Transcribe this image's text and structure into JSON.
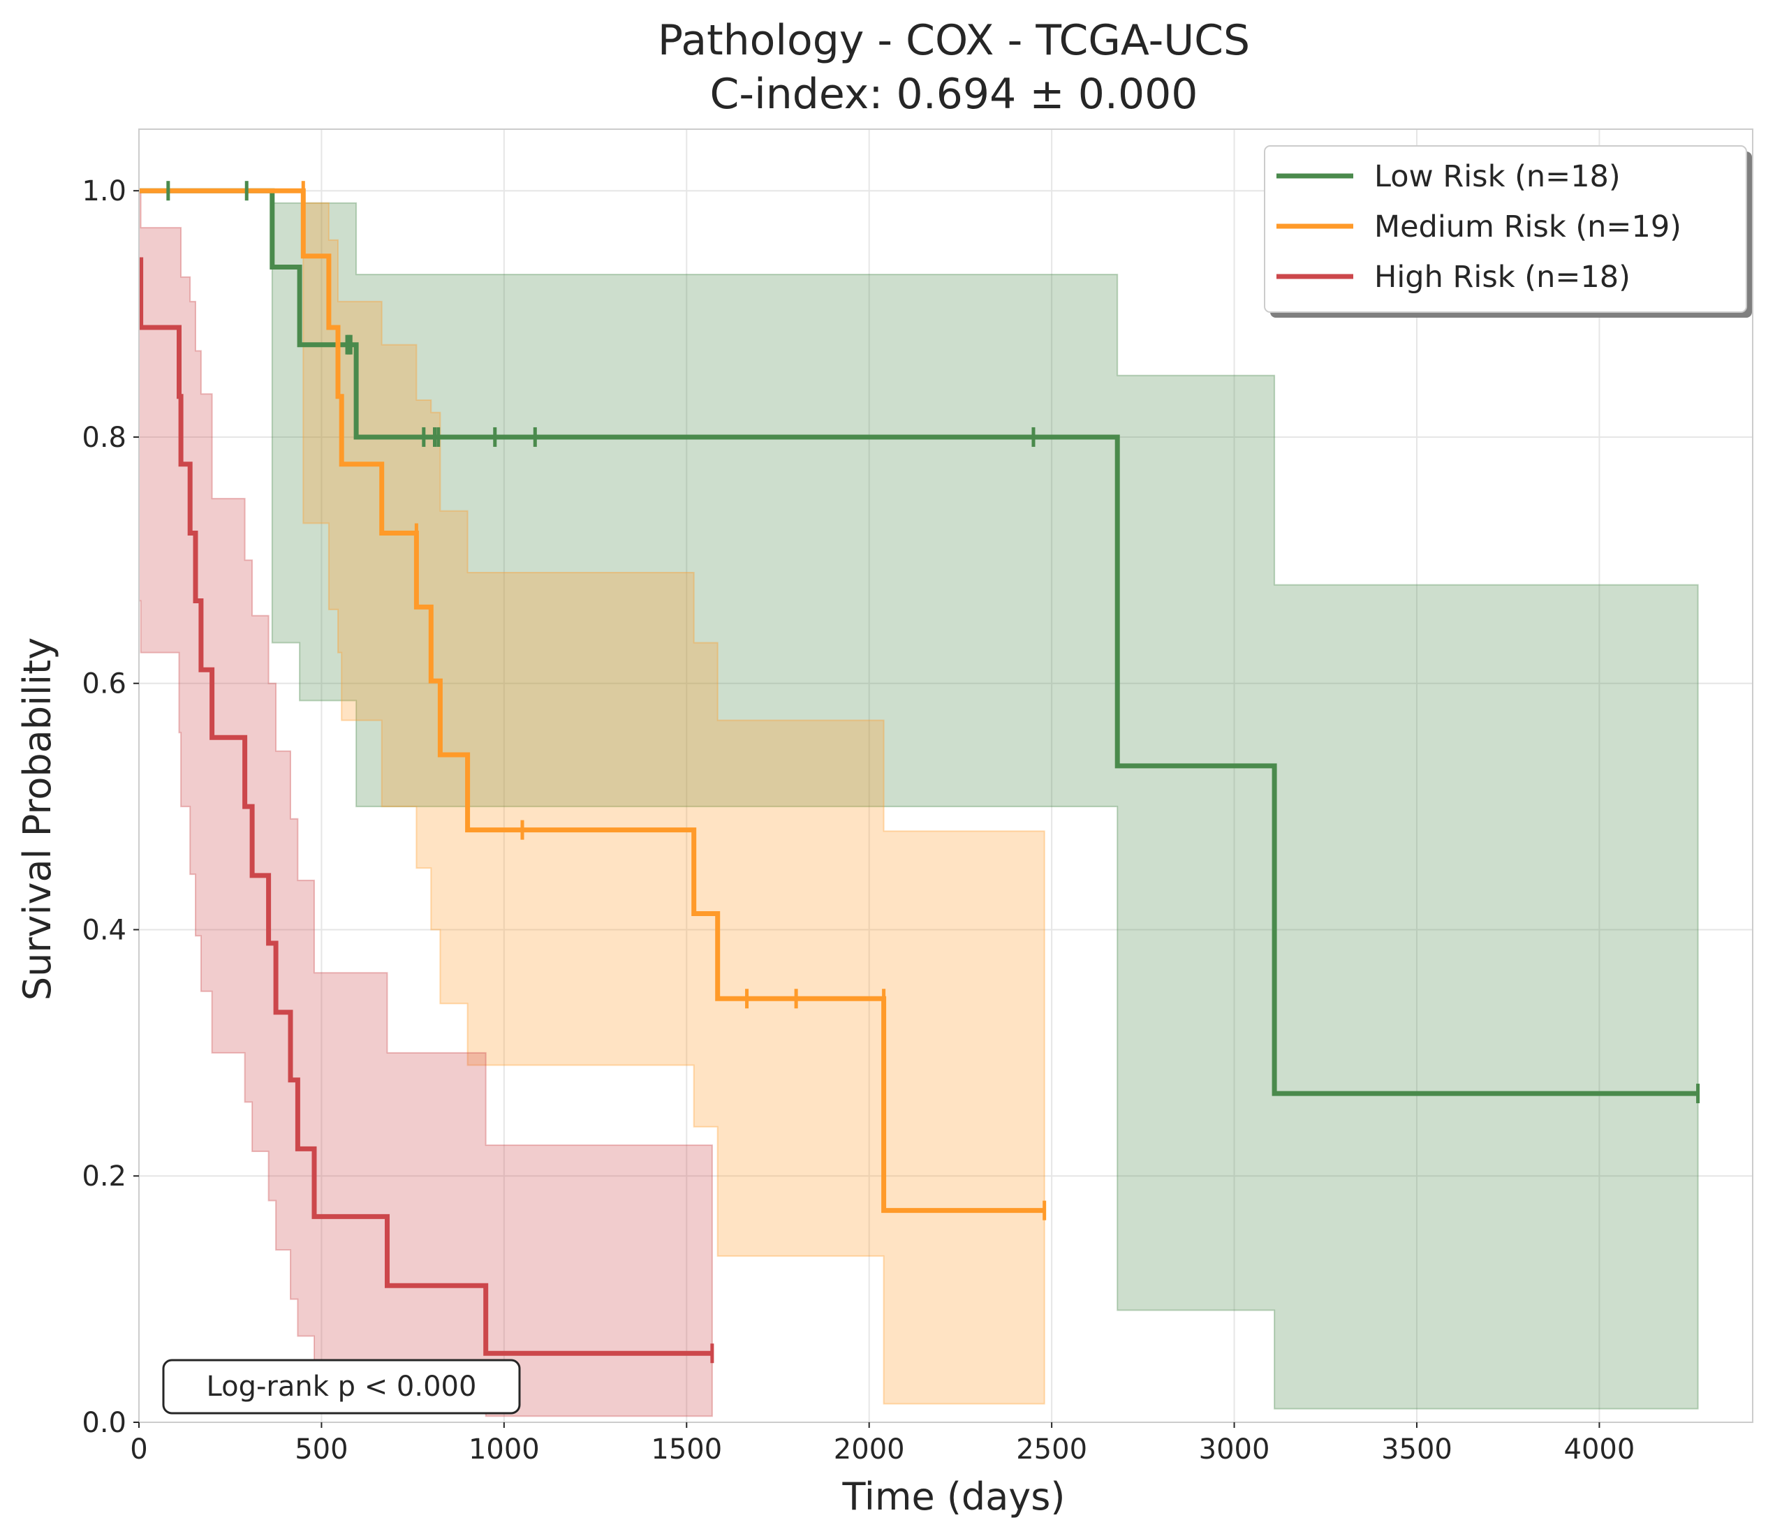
{
  "chart_data": {
    "type": "line",
    "subtype": "kaplan-meier",
    "title": "Pathology - COX - TCGA-UCS",
    "subtitle": "C-index: 0.694 ± 0.000",
    "xlabel": "Time (days)",
    "ylabel": "Survival Probability",
    "xlim": [
      0,
      4420
    ],
    "ylim": [
      0,
      1.05
    ],
    "xticks": [
      0,
      500,
      1000,
      1500,
      2000,
      2500,
      3000,
      3500,
      4000
    ],
    "yticks": [
      0.0,
      0.2,
      0.4,
      0.6,
      0.8,
      1.0
    ],
    "xtick_labels": [
      "0",
      "500",
      "1000",
      "1500",
      "2000",
      "2500",
      "3000",
      "3500",
      "4000"
    ],
    "ytick_labels": [
      "0.0",
      "0.2",
      "0.4",
      "0.6",
      "0.8",
      "1.0"
    ],
    "grid": true,
    "legend_position": "top-right",
    "annotation": "Log-rank p < 0.000",
    "series": [
      {
        "name": "Low Risk (n=18)",
        "color": "#4a8a4c",
        "steps": [
          [
            0,
            1.0
          ],
          [
            365,
            0.938
          ],
          [
            440,
            0.875
          ],
          [
            595,
            0.8
          ],
          [
            2680,
            0.533
          ],
          [
            3110,
            0.267
          ],
          [
            4270,
            0.267
          ]
        ],
        "ci": [
          [
            0,
            1.0,
            1.0
          ],
          [
            365,
            0.99,
            0.633
          ],
          [
            440,
            0.99,
            0.586
          ],
          [
            595,
            0.967,
            0.5
          ],
          [
            595,
            0.932,
            0.5
          ],
          [
            2680,
            0.85,
            0.091
          ],
          [
            3110,
            0.68,
            0.011
          ],
          [
            4270,
            0.68,
            0.011
          ]
        ],
        "censored": [
          [
            80,
            1.0
          ],
          [
            295,
            1.0
          ],
          [
            570,
            0.875
          ],
          [
            575,
            0.875
          ],
          [
            580,
            0.875
          ],
          [
            780,
            0.8
          ],
          [
            810,
            0.8
          ],
          [
            820,
            0.8
          ],
          [
            975,
            0.8
          ],
          [
            1085,
            0.8
          ],
          [
            2450,
            0.8
          ],
          [
            4270,
            0.267
          ]
        ]
      },
      {
        "name": "Medium Risk (n=19)",
        "color": "#ff9a29",
        "steps": [
          [
            0,
            1.0
          ],
          [
            450,
            0.947
          ],
          [
            520,
            0.889
          ],
          [
            545,
            0.833
          ],
          [
            555,
            0.778
          ],
          [
            665,
            0.722
          ],
          [
            760,
            0.662
          ],
          [
            800,
            0.602
          ],
          [
            825,
            0.542
          ],
          [
            900,
            0.481
          ],
          [
            1520,
            0.413
          ],
          [
            1585,
            0.344
          ],
          [
            2040,
            0.172
          ],
          [
            2480,
            0.172
          ]
        ],
        "ci": [
          [
            0,
            1.0,
            1.0
          ],
          [
            450,
            0.99,
            0.73
          ],
          [
            520,
            0.96,
            0.66
          ],
          [
            545,
            0.91,
            0.625
          ],
          [
            555,
            0.91,
            0.57
          ],
          [
            665,
            0.875,
            0.5
          ],
          [
            760,
            0.83,
            0.45
          ],
          [
            800,
            0.82,
            0.4
          ],
          [
            825,
            0.74,
            0.34
          ],
          [
            900,
            0.69,
            0.29
          ],
          [
            1520,
            0.633,
            0.24
          ],
          [
            1585,
            0.57,
            0.135
          ],
          [
            2040,
            0.48,
            0.015
          ],
          [
            2480,
            0.48,
            0.015
          ]
        ],
        "censored": [
          [
            450,
            1.0
          ],
          [
            760,
            0.722
          ],
          [
            1050,
            0.481
          ],
          [
            1665,
            0.344
          ],
          [
            1800,
            0.344
          ],
          [
            2040,
            0.344
          ],
          [
            2480,
            0.172
          ]
        ]
      },
      {
        "name": "High Risk (n=18)",
        "color": "#cc474b",
        "steps": [
          [
            0,
            0.944
          ],
          [
            5,
            0.889
          ],
          [
            110,
            0.833
          ],
          [
            115,
            0.778
          ],
          [
            140,
            0.722
          ],
          [
            155,
            0.667
          ],
          [
            170,
            0.611
          ],
          [
            200,
            0.556
          ],
          [
            290,
            0.5
          ],
          [
            310,
            0.444
          ],
          [
            355,
            0.389
          ],
          [
            375,
            0.333
          ],
          [
            415,
            0.278
          ],
          [
            435,
            0.222
          ],
          [
            480,
            0.167
          ],
          [
            680,
            0.111
          ],
          [
            950,
            0.056
          ],
          [
            1570,
            0.056
          ]
        ],
        "ci": [
          [
            0,
            1.0,
            0.667
          ],
          [
            5,
            0.97,
            0.625
          ],
          [
            110,
            0.97,
            0.56
          ],
          [
            115,
            0.93,
            0.5
          ],
          [
            140,
            0.91,
            0.445
          ],
          [
            155,
            0.87,
            0.395
          ],
          [
            170,
            0.835,
            0.35
          ],
          [
            200,
            0.75,
            0.3
          ],
          [
            290,
            0.7,
            0.26
          ],
          [
            310,
            0.655,
            0.22
          ],
          [
            355,
            0.6,
            0.18
          ],
          [
            375,
            0.545,
            0.14
          ],
          [
            415,
            0.49,
            0.1
          ],
          [
            435,
            0.44,
            0.07
          ],
          [
            480,
            0.365,
            0.04
          ],
          [
            680,
            0.3,
            0.02
          ],
          [
            950,
            0.225,
            0.005
          ],
          [
            1570,
            0.225,
            0.005
          ]
        ],
        "censored": [
          [
            1570,
            0.056
          ]
        ]
      }
    ]
  }
}
